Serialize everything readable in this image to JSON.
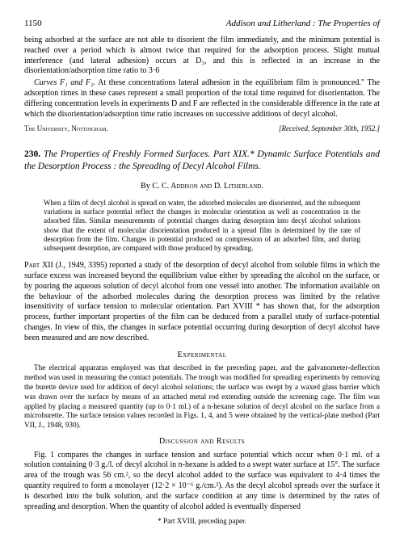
{
  "header": {
    "page_number": "1150",
    "running_title": "Addison and Litherland : The Properties of"
  },
  "top_paragraph": {
    "p1": "being adsorbed at the surface are not able to disorient the film immediately, and the minimum potential is reached over a period which is almost twice that required for the adsorption process. Slight mutual interference (and lateral adhesion) occurs at D₃, and this is reflected in an increase in the disorientation/adsorption time ratio to 3·6",
    "p2_lead": "Curves F₁ and F₂.",
    "p2": " At these concentrations lateral adhesion in the equilibrium film is pronounced.\" The adsorption times in these cases represent a small proportion of the total time required for disorientation. The differing concentration levels in experiments D and F are reflected in the considerable difference in the rate at which the disorientation/adsorption time ratio increases on successive additions of decyl alcohol."
  },
  "affiliation": {
    "left": "The University, Nottingham.",
    "right": "[Received, September 30th, 1952.]"
  },
  "article": {
    "number": "230.",
    "title": "The Properties of Freshly Formed Surfaces. Part XIX.* Dynamic Surface Potentials and the Desorption Process : the Spreading of Decyl Alcohol Films.",
    "byline_by": "By ",
    "byline_authors": "C. C. Addison and D. Litherland."
  },
  "abstract": {
    "text": "When a film of decyl alcohol is spread on water, the adsorbed molecules are disoriented, and the subsequent variations in surface potential reflect the changes in molecular orientation as well as concentration in the adsorbed film. Similar measurements of potential changes during desorption into decyl alcohol solutions show that the extent of molecular disorientation produced in a spread film is determined by the rate of desorption from the film. Changes in potential produced on compression of an adsorbed film, and during subsequent desorption, are compared with those produced by spreading."
  },
  "body": {
    "intro_lead": "Part",
    "intro": " XII (J., 1949, 3395) reported a study of the desorption of decyl alcohol from soluble films in which the surface excess was increased beyond the equilibrium value either by spreading the alcohol on the surface, or by pouring the aqueous solution of decyl alcohol from one vessel into another. The information available on the behaviour of the adsorbed molecules during the desorption process was limited by the relative insensitivity of surface tension to molecular orientation. Part XVIII * has shown that, for the adsorption process, further important properties of the film can be deduced from a parallel study of surface-potential changes. In view of this, the changes in surface potential occurring during desorption of decyl alcohol have been measured and are now described."
  },
  "experimental": {
    "head": "Experimental",
    "text": "The electrical apparatus employed was that described in the preceding paper, and the galvanometer-deflection method was used in measuring the contact potentials. The trough was modified for spreading experiments by removing the burette device used for addition of decyl alcohol solutions; the surface was swept by a waxed glass barrier which was drawn over the surface by means of an attached metal rod extending outside the screening cage. The film was applied by placing a measured quantity (up to 0·1 ml.) of a n-hexane solution of decyl alcohol on the surface from a microburette. The surface tension values recorded in Figs. 1, 4, and 5 were obtained by the vertical-plate method (Part VII, J., 1948, 930)."
  },
  "discussion": {
    "head": "Discussion and Results",
    "text": "Fig. 1 compares the changes in surface tension and surface potential which occur when 0·1 ml. of a solution containing 0·3 g./l. of decyl alcohol in n-hexane is added to a swept water surface at 15°. The surface area of the trough was 56 cm.², so the decyl alcohol added to the surface was equivalent to 4·4 times the quantity required to form a monolayer (12·2 × 10⁻⁶ g./cm.²). As the decyl alcohol spreads over the surface it is desorbed into the bulk solution, and the surface condition at any time is determined by the rates of spreading and desorption. When the quantity of alcohol added is eventually dispersed"
  },
  "footnote": "* Part XVIII, preceding paper."
}
